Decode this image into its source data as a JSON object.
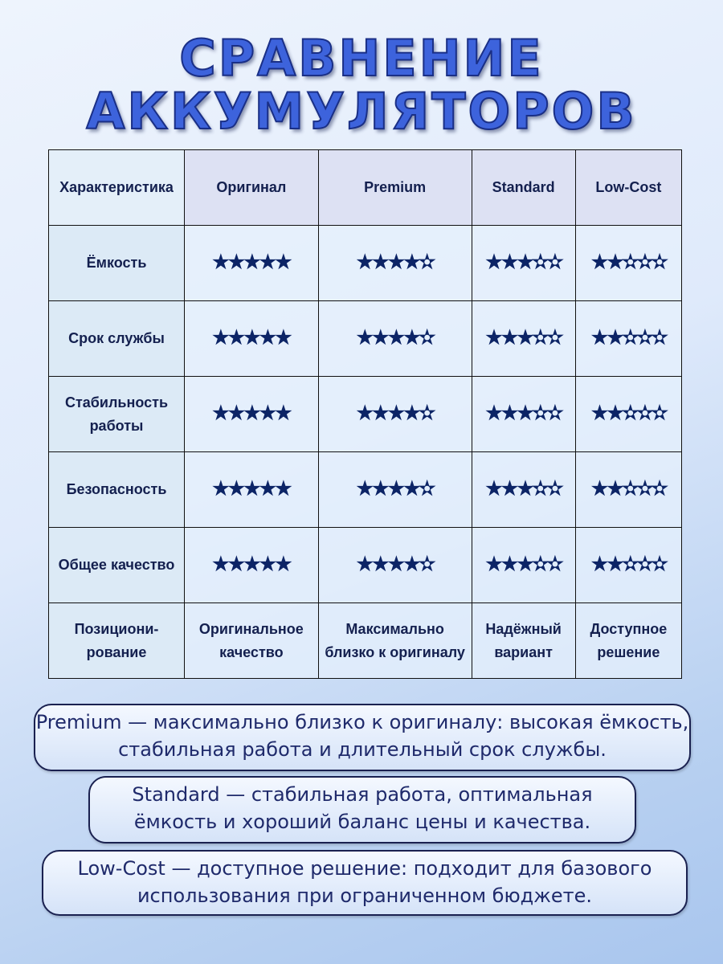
{
  "title": [
    "СРАВНЕНИЕ",
    "АККУМУЛЯТОРОВ"
  ],
  "table": {
    "headers": [
      "Характеристика",
      "Оригинал",
      "Premium",
      "Standard",
      "Low-Cost"
    ],
    "rating_rows": [
      {
        "label": "Ёмкость",
        "ratings": [
          5,
          4,
          3,
          2
        ]
      },
      {
        "label": "Срок службы",
        "ratings": [
          5,
          4,
          3,
          2
        ]
      },
      {
        "label": "Стабильность работы",
        "ratings": [
          5,
          4,
          3,
          2
        ]
      },
      {
        "label": "Безопасность",
        "ratings": [
          5,
          4,
          3,
          2
        ]
      },
      {
        "label": "Общее качество",
        "ratings": [
          5,
          4,
          3,
          2
        ]
      }
    ],
    "rating_max": 5,
    "position_row": {
      "label": "Позициони-рование",
      "values": [
        "Оригинальное качество",
        "Максимально близко к оригиналу",
        "Надёжный вариант",
        "Доступное решение"
      ]
    }
  },
  "notes": [
    "Premium — максимально близко к оригиналу: высокая ёмкость, стабильная работа и длительный срок службы.",
    "Standard — стабильная работа, оптимальная ёмкость и хороший баланс цены и качества.",
    "Low-Cost — доступное решение: подходит для базового использования при ограниченном бюджете."
  ],
  "colors": {
    "title": "#3d63dc",
    "star": "#0c2466",
    "text": "#14204f"
  }
}
